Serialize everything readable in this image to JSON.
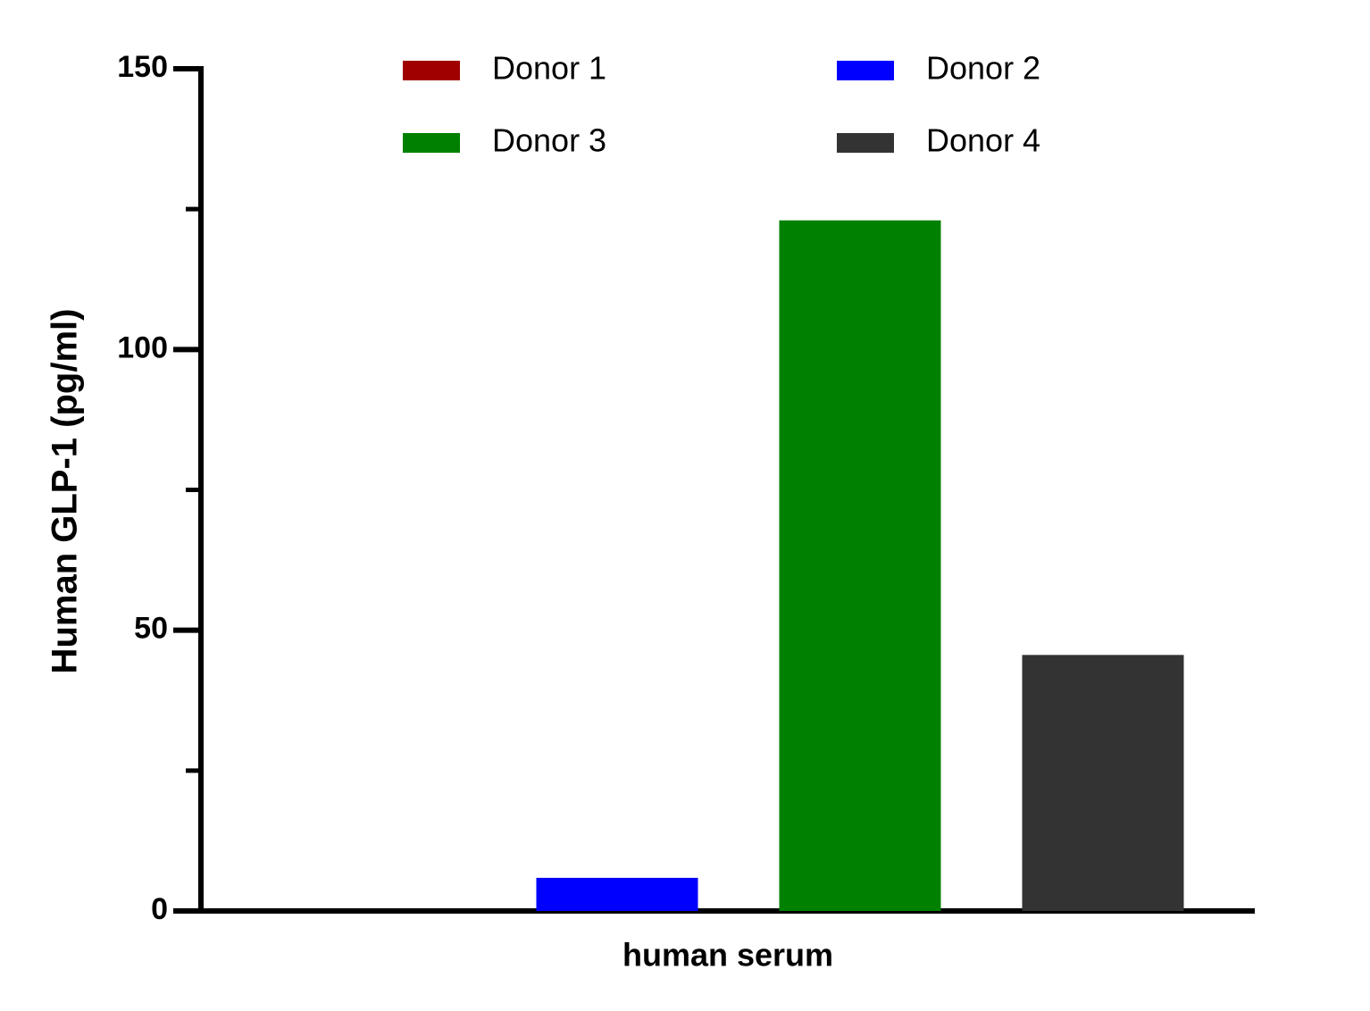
{
  "chart_data": {
    "type": "bar",
    "ylabel": "Human GLP-1 (pg/ml)",
    "categories": [
      "human serum"
    ],
    "series": [
      {
        "name": "Donor 1",
        "color": "#a00000",
        "values": [
          0
        ]
      },
      {
        "name": "Donor 2",
        "color": "#0000ff",
        "values": [
          5.9
        ]
      },
      {
        "name": "Donor 3",
        "color": "#008000",
        "values": [
          123
        ]
      },
      {
        "name": "Donor 4",
        "color": "#333333",
        "values": [
          45.6
        ]
      }
    ],
    "ylim": [
      0,
      150
    ],
    "yticks": [
      0,
      50,
      100,
      150
    ],
    "minor_yticks": [
      25,
      75,
      125
    ],
    "grid": false,
    "legend": "top"
  }
}
